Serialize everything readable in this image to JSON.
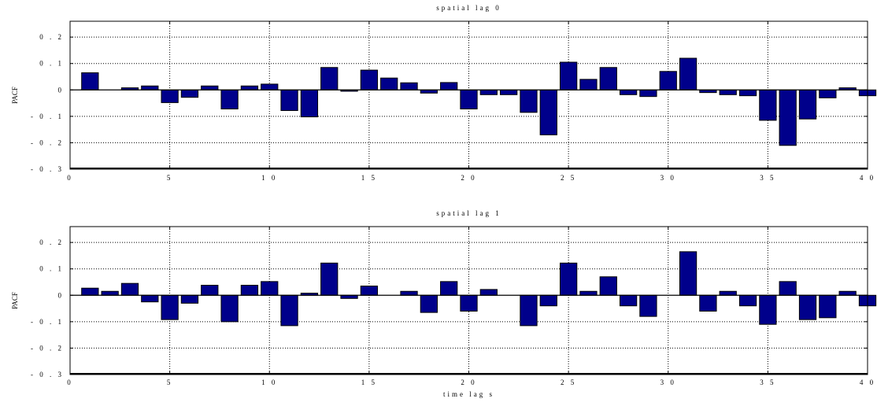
{
  "chart_data": [
    {
      "type": "bar",
      "title": "spatial lag 0",
      "xlabel": "",
      "ylabel": "PACF",
      "xlim": [
        0,
        40
      ],
      "ylim": [
        -0.3,
        0.26
      ],
      "xticks": [
        0,
        5,
        10,
        15,
        20,
        25,
        30,
        35,
        40
      ],
      "xtick_labels": [
        "0",
        "5",
        "1 0",
        "1 5",
        "2 0",
        "2 5",
        "3 0",
        "3 5",
        "4 0"
      ],
      "yticks": [
        0.2,
        0.1,
        0,
        -0.1,
        -0.2,
        -0.3
      ],
      "ytick_labels": [
        "0 . 2",
        "0 . 1",
        "0",
        "- 0 . 1",
        "- 0 . 2",
        "- 0 . 3"
      ],
      "grid": true,
      "bar_color": "#00008b",
      "x": [
        1,
        2,
        3,
        4,
        5,
        6,
        7,
        8,
        9,
        10,
        11,
        12,
        13,
        14,
        15,
        16,
        17,
        18,
        19,
        20,
        21,
        22,
        23,
        24,
        25,
        26,
        27,
        28,
        29,
        30,
        31,
        32,
        33,
        34,
        35,
        36,
        37,
        38,
        39,
        40
      ],
      "values": [
        0.065,
        0.0,
        0.008,
        0.015,
        -0.048,
        -0.028,
        0.015,
        -0.072,
        0.015,
        0.022,
        -0.078,
        -0.102,
        0.085,
        -0.005,
        0.075,
        0.045,
        0.027,
        -0.012,
        0.028,
        -0.072,
        -0.018,
        -0.018,
        -0.085,
        -0.17,
        0.105,
        0.04,
        0.085,
        -0.018,
        -0.025,
        0.07,
        0.12,
        -0.01,
        -0.018,
        -0.022,
        -0.115,
        -0.21,
        -0.11,
        -0.03,
        0.008,
        -0.022
      ]
    },
    {
      "type": "bar",
      "title": "spatial lag 1",
      "xlabel": "time lag s",
      "ylabel": "PACF",
      "xlim": [
        0,
        40
      ],
      "ylim": [
        -0.3,
        0.26
      ],
      "xticks": [
        0,
        5,
        10,
        15,
        20,
        25,
        30,
        35,
        40
      ],
      "xtick_labels": [
        "0",
        "5",
        "1 0",
        "1 5",
        "2 0",
        "2 5",
        "3 0",
        "3 5",
        "4 0"
      ],
      "yticks": [
        0.2,
        0.1,
        0,
        -0.1,
        -0.2,
        -0.3
      ],
      "ytick_labels": [
        "0 . 2",
        "0 . 1",
        "0",
        "- 0 . 1",
        "- 0 . 2",
        "- 0 . 3"
      ],
      "grid": true,
      "bar_color": "#00008b",
      "x": [
        1,
        2,
        3,
        4,
        5,
        6,
        7,
        8,
        9,
        10,
        11,
        12,
        13,
        14,
        15,
        16,
        17,
        18,
        19,
        20,
        21,
        22,
        23,
        24,
        25,
        26,
        27,
        28,
        29,
        30,
        31,
        32,
        33,
        34,
        35,
        36,
        37,
        38,
        39,
        40
      ],
      "values": [
        0.027,
        0.015,
        0.045,
        -0.025,
        -0.092,
        -0.03,
        0.038,
        -0.1,
        0.038,
        0.052,
        -0.115,
        0.008,
        0.122,
        -0.012,
        0.035,
        0.0,
        0.015,
        -0.065,
        0.052,
        -0.06,
        0.022,
        0.0,
        -0.115,
        -0.04,
        0.122,
        0.015,
        0.07,
        -0.04,
        -0.08,
        0.0,
        0.165,
        -0.06,
        0.015,
        -0.04,
        -0.11,
        0.052,
        -0.092,
        -0.085,
        0.015,
        -0.04
      ]
    }
  ]
}
